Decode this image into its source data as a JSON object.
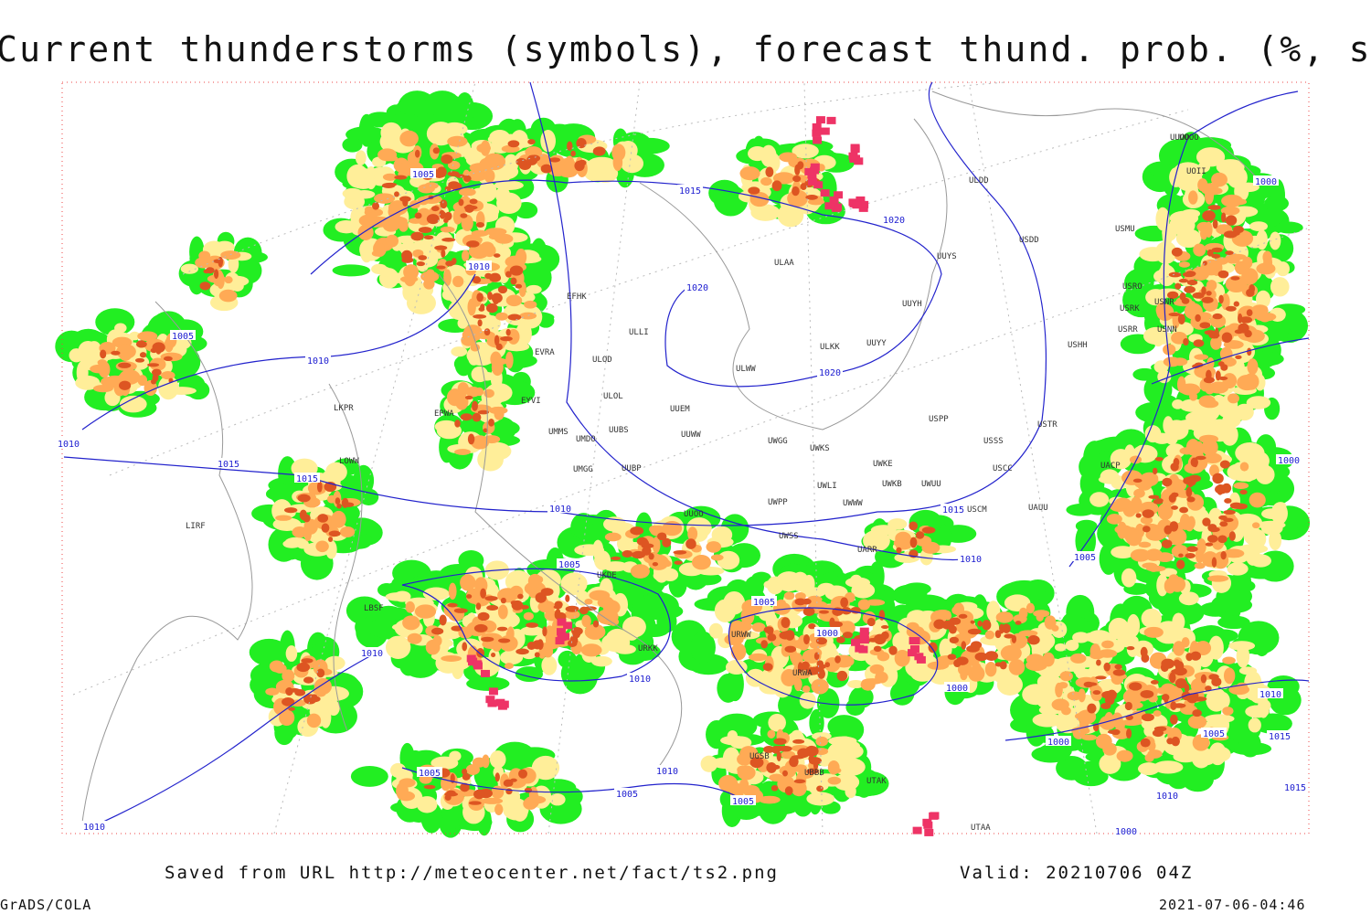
{
  "title": "Current thunderstorms (symbols), forecast thund. prob. (%, shaded)",
  "isobar_labels": [
    1005,
    1015,
    1020,
    1010,
    1020,
    1005,
    1010,
    1020,
    1010,
    1015,
    1015,
    1000,
    1000,
    1010,
    1015,
    1010,
    1005,
    1005,
    1005,
    1000,
    1010,
    1010,
    1000,
    1000,
    1010,
    1005,
    1015,
    1005,
    1005,
    1010,
    1005,
    1010,
    1010,
    1015,
    1000
  ],
  "station_labels": [
    "ULDD",
    "USDD",
    "USMU",
    "UUYS",
    "ULAA",
    "UUYH",
    "USRO",
    "USRK",
    "USNR",
    "USRR",
    "USNN",
    "USHH",
    "ULKK",
    "UUYY",
    "ULWW",
    "ULOD",
    "ULOL",
    "UUEM",
    "UMMS",
    "UUBS",
    "UUWW",
    "UMDO",
    "UWGG",
    "UWKS",
    "USSS",
    "USTR",
    "USPP",
    "UWKE",
    "UWKB",
    "UWUU",
    "USCC",
    "UACP",
    "UMGG",
    "UUBP",
    "UUOO",
    "UWPP",
    "UWLI",
    "UWWW",
    "USCM",
    "UAUU",
    "UWSS",
    "UARR",
    "URWA",
    "URWW",
    "URKK",
    "UKDE",
    "LKPR",
    "LOWW",
    "LIRF",
    "EFHK",
    "ULLI",
    "EVRA",
    "EYVI",
    "EPWA",
    "LBSF",
    "UTAK",
    "UTAA",
    "UGSB",
    "UBBB",
    "UUOD",
    "UOOO",
    "UOII"
  ],
  "footer": {
    "source": "Saved from URL http://meteocenter.net/fact/ts2.png",
    "valid": "Valid: 20210706 04Z",
    "software": "GrADS/COLA",
    "timestamp": "2021-07-06-04:46"
  }
}
